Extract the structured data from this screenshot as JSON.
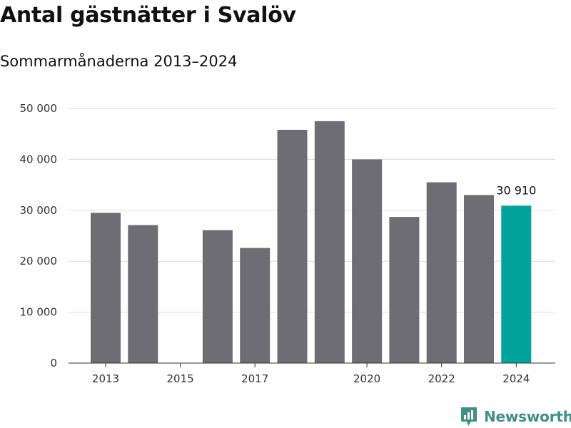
{
  "title": "Antal gästnätter i Svalöv",
  "subtitle": "Sommarmånaderna 2013–2024",
  "brand": {
    "name": "Newsworthy",
    "icon": "newsworthy-logo-icon",
    "color": "#3f8f86"
  },
  "colors": {
    "bar": "#6e6d73",
    "highlight": "#00a49a",
    "grid": "#dcdcdc",
    "axis": "#333333"
  },
  "chart_data": {
    "type": "bar",
    "categories": [
      "2013",
      "2014",
      "2015",
      "2016",
      "2017",
      "2018",
      "2019",
      "2020",
      "2021",
      "2022",
      "2023",
      "2024"
    ],
    "values": [
      29500,
      27100,
      null,
      26100,
      22600,
      45800,
      47500,
      40000,
      28700,
      35500,
      33000,
      30910
    ],
    "highlight_index": 11,
    "data_labels": [
      {
        "index": 11,
        "text": "30 910"
      }
    ],
    "x_tick_labels": [
      {
        "index": 0,
        "text": "2013"
      },
      {
        "index": 2,
        "text": "2015"
      },
      {
        "index": 4,
        "text": "2017"
      },
      {
        "index": 7,
        "text": "2020"
      },
      {
        "index": 9,
        "text": "2022"
      },
      {
        "index": 11,
        "text": "2024"
      }
    ],
    "y_ticks": [
      {
        "value": 0,
        "text": "0"
      },
      {
        "value": 10000,
        "text": "10 000"
      },
      {
        "value": 20000,
        "text": "20 000"
      },
      {
        "value": 30000,
        "text": "30 000"
      },
      {
        "value": 40000,
        "text": "40 000"
      },
      {
        "value": 50000,
        "text": "50 000"
      }
    ],
    "ylim": [
      0,
      50000
    ],
    "xlabel": "",
    "ylabel": "",
    "grid": true,
    "legend": "none"
  }
}
